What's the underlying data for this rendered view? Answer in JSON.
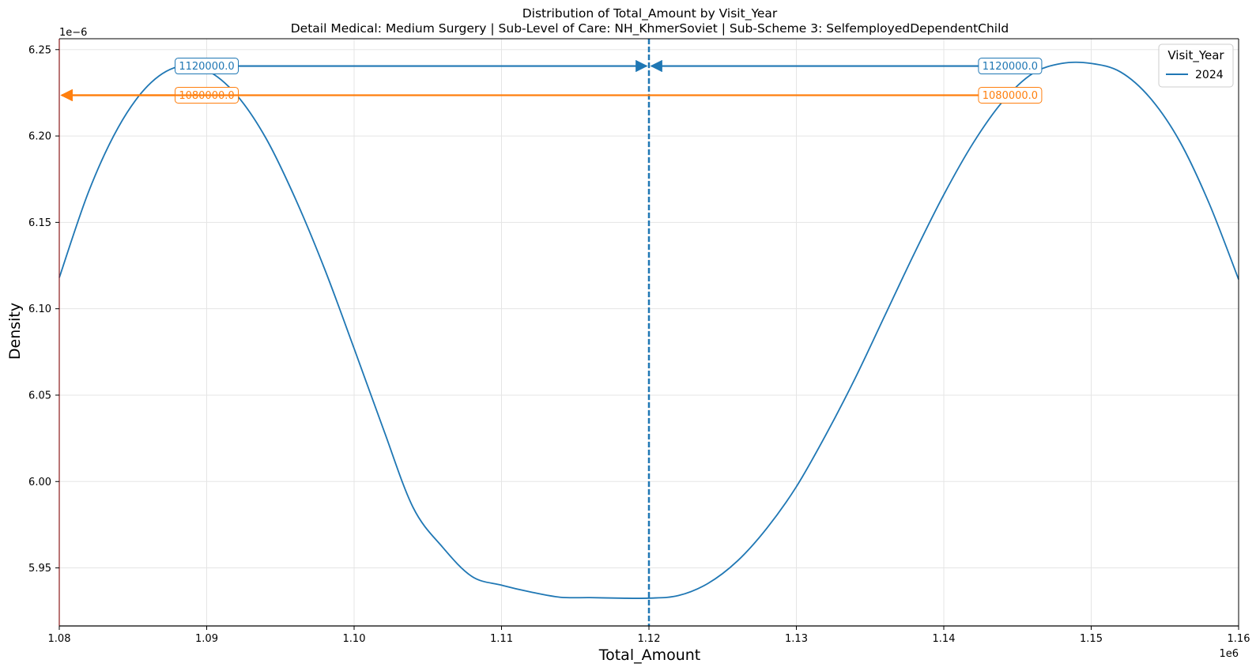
{
  "chart_data": {
    "type": "line",
    "title": "Distribution of Total_Amount by Visit_Year",
    "subtitle": "Detail Medical: Medium Surgery | Sub-Level of Care: NH_KhmerSoviet | Sub-Scheme 3: SelfemployedDependentChild",
    "xlabel": "Total_Amount",
    "ylabel": "Density",
    "x_offset_label": "1e6",
    "y_offset_label": "1e−6",
    "xlim": [
      1080000,
      1160000
    ],
    "ylim": [
      5.9164e-06,
      6.2563e-06
    ],
    "x_ticks": [
      1080000,
      1090000,
      1100000,
      1110000,
      1120000,
      1130000,
      1140000,
      1150000,
      1160000
    ],
    "x_tick_labels": [
      "1.08",
      "1.09",
      "1.10",
      "1.11",
      "1.12",
      "1.13",
      "1.14",
      "1.15",
      "1.16"
    ],
    "y_ticks": [
      5.95e-06,
      6e-06,
      6.05e-06,
      6.1e-06,
      6.15e-06,
      6.2e-06,
      6.25e-06
    ],
    "y_tick_labels": [
      "5.95",
      "6.00",
      "6.05",
      "6.10",
      "6.15",
      "6.20",
      "6.25"
    ],
    "grid": true,
    "legend": {
      "title": "Visit_Year",
      "placement": "top-right"
    },
    "series": [
      {
        "name": "2024",
        "color": "#1f77b4",
        "x": [
          1080000,
          1082000,
          1084000,
          1086000,
          1088000,
          1090000,
          1092000,
          1094000,
          1096000,
          1098000,
          1100000,
          1102000,
          1104000,
          1106000,
          1108000,
          1110000,
          1112000,
          1114000,
          1116000,
          1118000,
          1120000,
          1122000,
          1124000,
          1126000,
          1128000,
          1130000,
          1132000,
          1134000,
          1136000,
          1138000,
          1140000,
          1142000,
          1144000,
          1146000,
          1148000,
          1150000,
          1152000,
          1154000,
          1156000,
          1158000,
          1160000
        ],
        "y": [
          6.118e-06,
          6.168e-06,
          6.205e-06,
          6.229e-06,
          6.24e-06,
          6.238e-06,
          6.224e-06,
          6.199e-06,
          6.164e-06,
          6.123e-06,
          6.077e-06,
          6.03e-06,
          5.985e-06,
          5.962e-06,
          5.945e-06,
          5.94e-06,
          5.936e-06,
          5.933e-06,
          5.9328e-06,
          5.9325e-06,
          5.9325e-06,
          5.934e-06,
          5.941e-06,
          5.954e-06,
          5.973e-06,
          5.997e-06,
          6.027e-06,
          6.06e-06,
          6.096e-06,
          6.132e-06,
          6.166e-06,
          6.196e-06,
          6.22e-06,
          6.236e-06,
          6.242e-06,
          6.242e-06,
          6.237e-06,
          6.222e-06,
          6.197e-06,
          6.161e-06,
          6.117e-06
        ]
      }
    ],
    "reference_lines": [
      {
        "x": 1120000,
        "color": "#1f77b4",
        "style": "dashed"
      }
    ],
    "annotations": [
      {
        "text": "1120000.0",
        "color": "#1f77b4",
        "y": 6.2405e-06,
        "label_x": 1090000,
        "arrow_to_x": 1120000,
        "side": "left"
      },
      {
        "text": "1120000.0",
        "color": "#1f77b4",
        "y": 6.2405e-06,
        "label_x": 1144500,
        "arrow_to_x": 1120000,
        "side": "right"
      },
      {
        "text": "1080000.0",
        "color": "#ff7f0e",
        "y": 6.2236e-06,
        "label_x": 1090000,
        "arrow_to_x": 1080000,
        "side": "left"
      },
      {
        "text": "1080000.0",
        "color": "#ff7f0e",
        "y": 6.2236e-06,
        "label_x": 1144500,
        "arrow_to_x": 1080000,
        "side": "right"
      }
    ]
  }
}
